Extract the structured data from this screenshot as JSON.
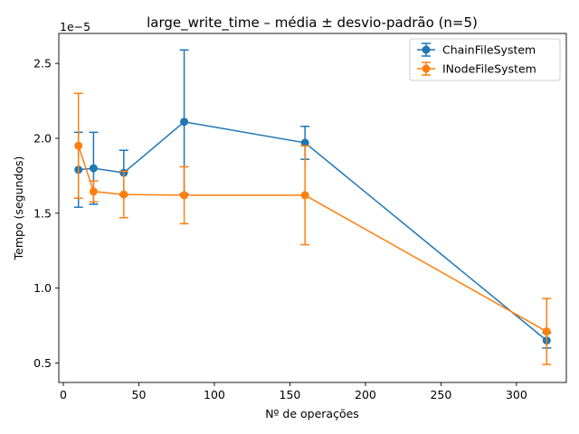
{
  "chart_data": {
    "type": "line",
    "title": "large_write_time – média ± desvio-padrão (n=5)",
    "xlabel": "Nº de operações",
    "ylabel": "Tempo (segundos)",
    "y_offset_label": "1e−5",
    "xlim": [
      -3,
      333
    ],
    "ylim": [
      0.37,
      2.7
    ],
    "x_ticks": [
      0,
      50,
      100,
      150,
      200,
      250,
      300
    ],
    "y_ticks": [
      0.5,
      1.0,
      1.5,
      2.0,
      2.5
    ],
    "y_tick_labels": [
      "0.5",
      "1.0",
      "1.5",
      "2.0",
      "2.5"
    ],
    "grid": false,
    "legend_position": "top-right",
    "x": [
      10,
      20,
      40,
      80,
      160,
      320
    ],
    "series": [
      {
        "name": "ChainFileSystem",
        "color": "#1f77b4",
        "values": [
          1.79,
          1.8,
          1.77,
          2.11,
          1.97,
          0.65
        ],
        "errors": [
          0.25,
          0.24,
          0.15,
          0.48,
          0.11,
          0.05
        ]
      },
      {
        "name": "INodeFileSystem",
        "color": "#ff7f0e",
        "values": [
          1.95,
          1.645,
          1.625,
          1.62,
          1.62,
          0.71
        ],
        "errors": [
          0.35,
          0.07,
          0.155,
          0.19,
          0.33,
          0.22
        ]
      }
    ]
  }
}
